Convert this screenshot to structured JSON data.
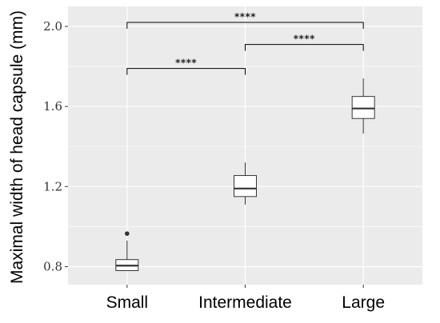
{
  "chart_data": {
    "type": "boxplot",
    "ylabel": "Maximal width of head capsule (mm)",
    "xlabel": "",
    "categories": [
      "Small",
      "Intermediate",
      "Large"
    ],
    "yticks": [
      "0.8",
      "1.2",
      "1.6",
      "2.0"
    ],
    "ytick_values": [
      0.8,
      1.2,
      1.6,
      2.0
    ],
    "ylim": [
      0.71,
      2.1
    ],
    "grid": true,
    "colors": {
      "panel": "#ebebeb",
      "grid": "#ffffff",
      "box_fill": "#ffffff",
      "box_stroke": "#333333",
      "bracket": "#000000"
    },
    "boxes": [
      {
        "category": "Small",
        "min": 0.78,
        "q1": 0.78,
        "median": 0.805,
        "q3": 0.835,
        "max": 0.93,
        "outliers": [
          0.965
        ]
      },
      {
        "category": "Intermediate",
        "min": 1.11,
        "q1": 1.15,
        "median": 1.19,
        "q3": 1.255,
        "max": 1.32,
        "outliers": []
      },
      {
        "category": "Large",
        "min": 1.465,
        "q1": 1.54,
        "median": 1.59,
        "q3": 1.65,
        "max": 1.74,
        "outliers": []
      }
    ],
    "comparisons": [
      {
        "from": 0,
        "to": 1,
        "y": 1.79,
        "label": "****"
      },
      {
        "from": 1,
        "to": 2,
        "y": 1.91,
        "label": "****"
      },
      {
        "from": 0,
        "to": 2,
        "y": 2.02,
        "label": "****"
      }
    ]
  }
}
